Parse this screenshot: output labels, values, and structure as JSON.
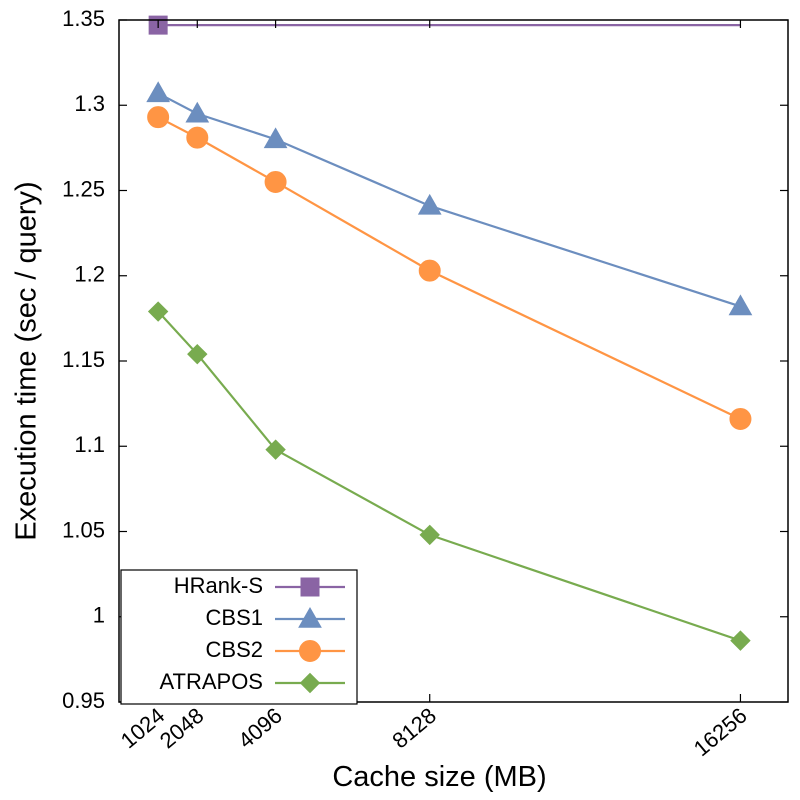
{
  "chart_data": {
    "type": "line",
    "title": "",
    "xlabel": "Cache size (MB)",
    "ylabel": "Execution time (sec / query)",
    "x_ticks": [
      "1024",
      "2048",
      "4096",
      "8128",
      "16256"
    ],
    "y_ticks": [
      "0.95",
      "1",
      "1.05",
      "1.1",
      "1.15",
      "1.2",
      "1.25",
      "1.3",
      "1.35"
    ],
    "xlim": [
      0,
      17500
    ],
    "ylim": [
      0.95,
      1.35
    ],
    "grid": false,
    "legend_position": "bottom-left",
    "series": [
      {
        "name": "HRank-S",
        "marker": "square",
        "color": "#8a64a4",
        "x": [
          1024
        ],
        "values": [
          1.347
        ],
        "extends_to_x": 16256
      },
      {
        "name": "CBS1",
        "marker": "triangle",
        "color": "#6c8ebf",
        "x": [
          1024,
          2048,
          4096,
          8128,
          16256
        ],
        "values": [
          1.307,
          1.295,
          1.28,
          1.241,
          1.182
        ]
      },
      {
        "name": "CBS2",
        "marker": "circle",
        "color": "#ff9544",
        "x": [
          1024,
          2048,
          4096,
          8128,
          16256
        ],
        "values": [
          1.293,
          1.281,
          1.255,
          1.203,
          1.116
        ]
      },
      {
        "name": "ATRAPOS",
        "marker": "diamond",
        "color": "#78ab4f",
        "x": [
          1024,
          2048,
          4096,
          8128,
          16256
        ],
        "values": [
          1.179,
          1.154,
          1.098,
          1.048,
          0.986
        ]
      }
    ]
  }
}
